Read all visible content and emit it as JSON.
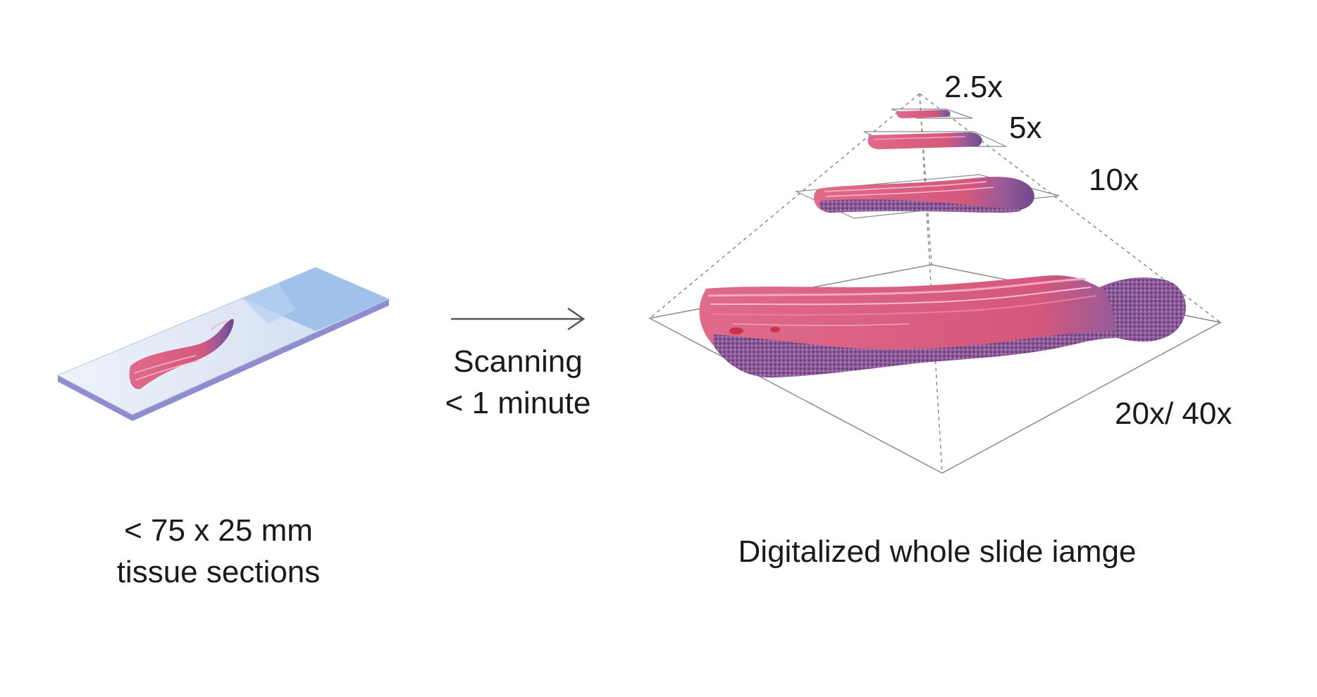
{
  "slide": {
    "size_label": "< 75 x 25 mm",
    "content_label": "tissue sections"
  },
  "process": {
    "action_label": "Scanning",
    "duration_label": "< 1 minute"
  },
  "pyramid": {
    "levels": [
      {
        "label": "2.5x"
      },
      {
        "label": "5x"
      },
      {
        "label": "10x"
      },
      {
        "label": "20x/ 40x"
      }
    ],
    "caption": "Digitalized whole slide iamge"
  },
  "colors": {
    "glass": "#dde6f5",
    "label_area": "#9fc1ea",
    "tissue_pink": "#d85a7e",
    "tissue_purple": "#7a4a8e",
    "arrow": "#555555",
    "pyramid_line": "#8a8a8a"
  }
}
